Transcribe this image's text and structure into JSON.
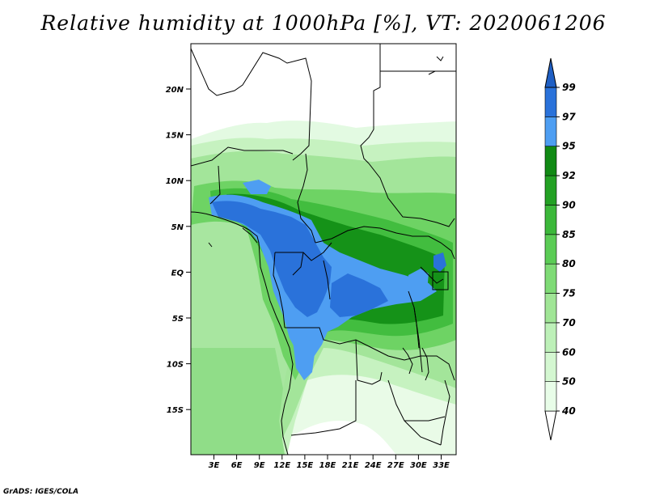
{
  "title": "Relative humidity at 1000hPa [%], VT: 2020061206",
  "credit": "GrADS: IGES/COLA",
  "map": {
    "lat_ticks": [
      "20N",
      "15N",
      "10N",
      "5N",
      "EQ",
      "5S",
      "10S",
      "15S"
    ],
    "lon_ticks": [
      "3E",
      "6E",
      "9E",
      "12E",
      "15E",
      "18E",
      "21E",
      "24E",
      "27E",
      "30E",
      "33E"
    ]
  },
  "colorbar": {
    "levels": [
      "40",
      "50",
      "60",
      "70",
      "75",
      "80",
      "85",
      "90",
      "92",
      "95",
      "97",
      "99"
    ],
    "colors": [
      "#ffffff",
      "#e8fde8",
      "#d4f7d1",
      "#bdf0b8",
      "#a0e596",
      "#7fdb76",
      "#5bcc55",
      "#3cb83a",
      "#23a124",
      "#118a14",
      "#4e9ef2",
      "#2a72da",
      "#1f5fc4"
    ]
  }
}
